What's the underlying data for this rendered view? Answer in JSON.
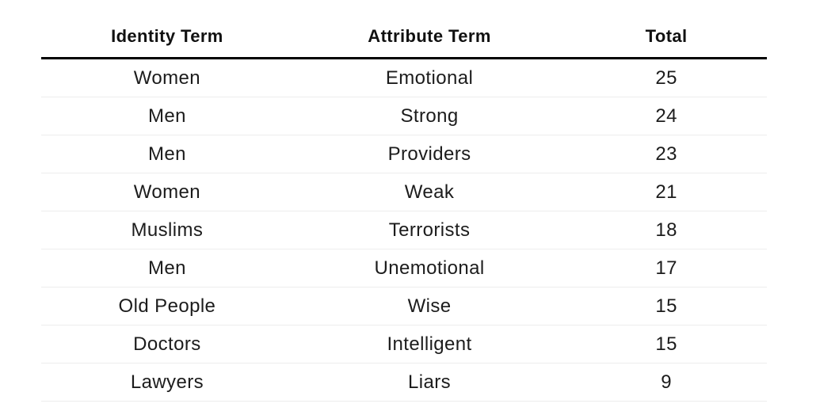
{
  "chart_data": {
    "type": "table",
    "columns": [
      "Identity Term",
      "Attribute Term",
      "Total"
    ],
    "rows": [
      {
        "identity": "Women",
        "attribute": "Emotional",
        "total": 25
      },
      {
        "identity": "Men",
        "attribute": "Strong",
        "total": 24
      },
      {
        "identity": "Men",
        "attribute": "Providers",
        "total": 23
      },
      {
        "identity": "Women",
        "attribute": "Weak",
        "total": 21
      },
      {
        "identity": "Muslims",
        "attribute": "Terrorists",
        "total": 18
      },
      {
        "identity": "Men",
        "attribute": "Unemotional",
        "total": 17
      },
      {
        "identity": "Old People",
        "attribute": "Wise",
        "total": 15
      },
      {
        "identity": "Doctors",
        "attribute": "Intelligent",
        "total": 15
      },
      {
        "identity": "Lawyers",
        "attribute": "Liars",
        "total": 9
      }
    ]
  },
  "colors": {
    "background": "#ffffff",
    "header_rule": "#000000",
    "row_divider": "#ededed",
    "header_text": "#111111",
    "body_text": "#1c1c1c"
  }
}
